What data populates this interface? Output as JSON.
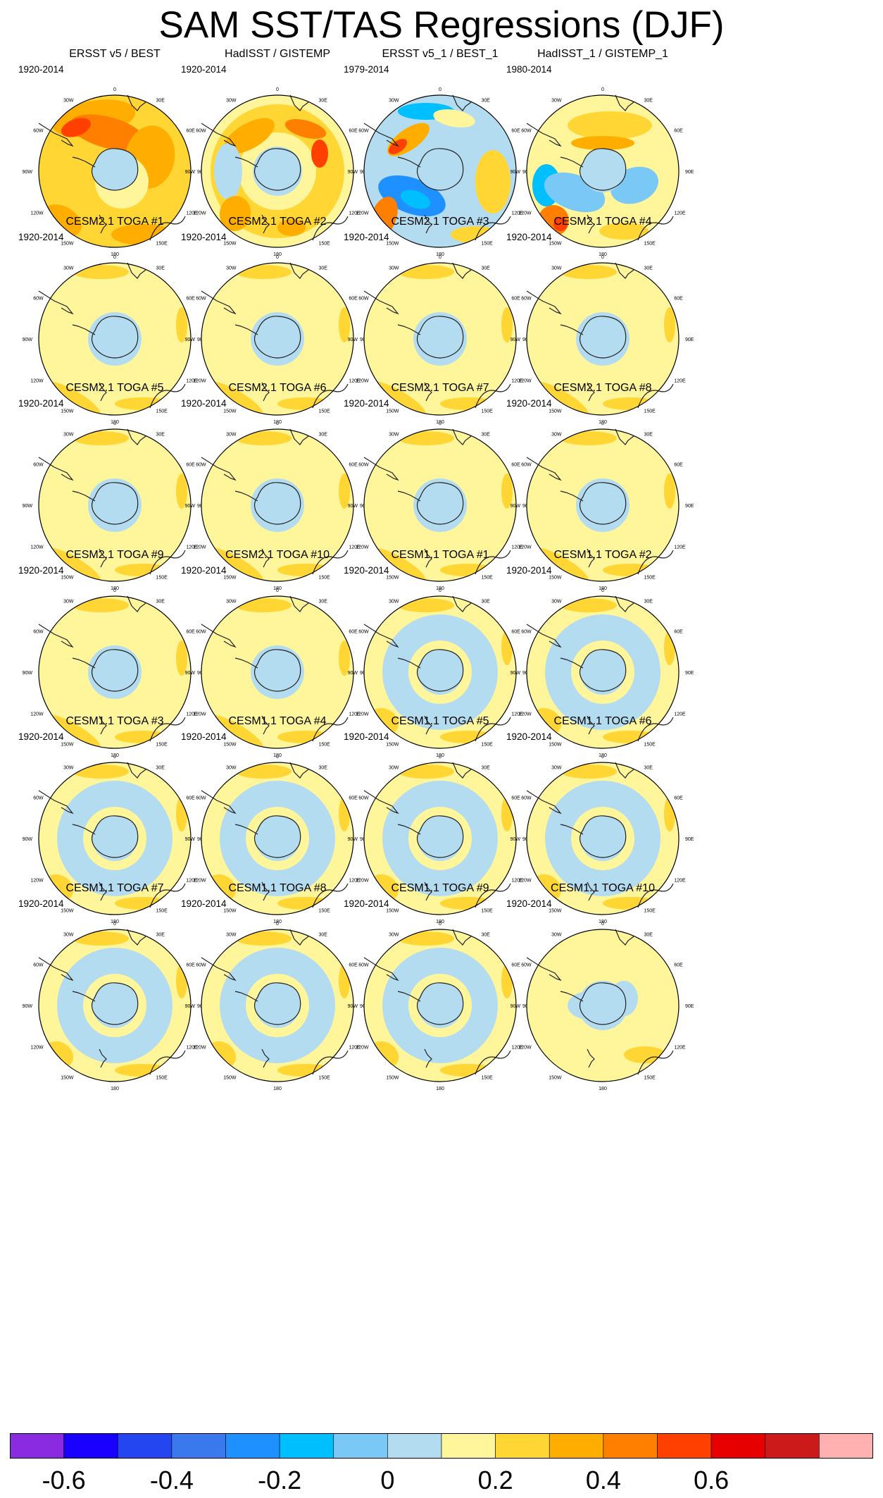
{
  "title": "SAM SST/TAS Regressions (DJF)",
  "panels": [
    {
      "title": "ERSST v5 / BEST",
      "period": "1920-2014",
      "pattern": "obs-warm"
    },
    {
      "title": "HadISST / GISTEMP",
      "period": "1920-2014",
      "pattern": "obs-mixed"
    },
    {
      "title": "ERSST v5_1 / BEST_1",
      "period": "1979-2014",
      "pattern": "obs-cool"
    },
    {
      "title": "HadISST_1 / GISTEMP_1",
      "period": "1980-2014",
      "pattern": "obs-cool-noisy"
    },
    {
      "title": "CESM2.1 TOGA #1",
      "period": "1920-2014",
      "pattern": "cesm2"
    },
    {
      "title": "CESM2.1 TOGA #2",
      "period": "1920-2014",
      "pattern": "cesm2"
    },
    {
      "title": "CESM2.1 TOGA #3",
      "period": "1920-2014",
      "pattern": "cesm2"
    },
    {
      "title": "CESM2.1 TOGA #4",
      "period": "1920-2014",
      "pattern": "cesm2"
    },
    {
      "title": "CESM2.1 TOGA #5",
      "period": "1920-2014",
      "pattern": "cesm2"
    },
    {
      "title": "CESM2.1 TOGA #6",
      "period": "1920-2014",
      "pattern": "cesm2"
    },
    {
      "title": "CESM2.1 TOGA #7",
      "period": "1920-2014",
      "pattern": "cesm2"
    },
    {
      "title": "CESM2.1 TOGA #8",
      "period": "1920-2014",
      "pattern": "cesm2"
    },
    {
      "title": "CESM2.1 TOGA #9",
      "period": "1920-2014",
      "pattern": "cesm2"
    },
    {
      "title": "CESM2.1 TOGA #10",
      "period": "1920-2014",
      "pattern": "cesm2"
    },
    {
      "title": "CESM1.1 TOGA #1",
      "period": "1920-2014",
      "pattern": "cesm1"
    },
    {
      "title": "CESM1.1 TOGA #2",
      "period": "1920-2014",
      "pattern": "cesm1"
    },
    {
      "title": "CESM1.1 TOGA #3",
      "period": "1920-2014",
      "pattern": "cesm1"
    },
    {
      "title": "CESM1.1 TOGA #4",
      "period": "1920-2014",
      "pattern": "cesm1"
    },
    {
      "title": "CESM1.1 TOGA #5",
      "period": "1920-2014",
      "pattern": "cesm1"
    },
    {
      "title": "CESM1.1 TOGA #6",
      "period": "1920-2014",
      "pattern": "cesm1"
    },
    {
      "title": "CESM1.1 TOGA #7",
      "period": "1920-2014",
      "pattern": "cesm1"
    },
    {
      "title": "CESM1.1 TOGA #8",
      "period": "1920-2014",
      "pattern": "cesm1"
    },
    {
      "title": "CESM1.1 TOGA #9",
      "period": "1920-2014",
      "pattern": "cesm1"
    },
    {
      "title": "CESM1.1 TOGA #10",
      "period": "1920-2014",
      "pattern": "cesm1-weak"
    }
  ],
  "map_labels": {
    "lon_0": "0",
    "lon_30e": "30E",
    "lon_60e": "60E",
    "lon_90e": "90E",
    "lon_120e": "120E",
    "lon_150e": "150E",
    "lon_180": "180",
    "lon_150w": "150W",
    "lon_120w": "120W",
    "lon_90w": "90W",
    "lon_60w": "60W",
    "lon_30w": "30W"
  },
  "colorbar": {
    "colors": [
      "#8a2be2",
      "#1a00ff",
      "#2446f0",
      "#3a78ee",
      "#1e90ff",
      "#00bfff",
      "#79c8f5",
      "#b4dcf0",
      "#fff59a",
      "#ffd633",
      "#ffae00",
      "#ff7f00",
      "#ff4000",
      "#e60000",
      "#cc1a1a",
      "#ffb0b0"
    ],
    "tick_labels": [
      "-0.6",
      "-0.4",
      "-0.2",
      "0",
      "0.2",
      "0.4",
      "0.6"
    ],
    "tick_values": [
      -0.6,
      -0.4,
      -0.2,
      0,
      0.2,
      0.4,
      0.6
    ],
    "min": -0.7,
    "max": 0.9
  }
}
